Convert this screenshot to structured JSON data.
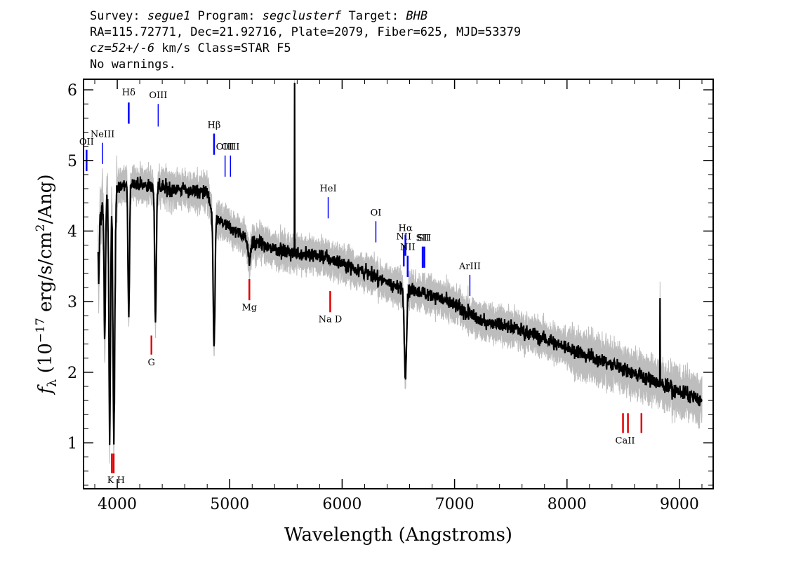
{
  "header": {
    "line1": [
      {
        "text": "Survey: ",
        "italic": false
      },
      {
        "text": "segue1",
        "italic": true
      },
      {
        "text": " Program: ",
        "italic": false
      },
      {
        "text": "segclusterf",
        "italic": true
      },
      {
        "text": " Target: ",
        "italic": false
      },
      {
        "text": "BHB",
        "italic": true
      }
    ],
    "line2": "RA=115.72771, Dec=21.92716, Plate=2079, Fiber=625, MJD=53379",
    "line3": [
      {
        "text": "cz=52+/-6",
        "italic": true
      },
      {
        "text": " km/s Class=STAR F5",
        "italic": false
      }
    ],
    "line4": "No warnings."
  },
  "chart_data": {
    "type": "line",
    "xlabel": "Wavelength (Angstroms)",
    "ylabel_parts": {
      "f": "f",
      "sub": "λ",
      "pre": " (10",
      "exp": "−17",
      "mid": " erg/s/cm",
      "exp2": "2",
      "post": "/Ang)"
    },
    "xlim": [
      3700,
      9300
    ],
    "ylim": [
      0.35,
      6.15
    ],
    "xticks": [
      4000,
      5000,
      6000,
      7000,
      8000,
      9000
    ],
    "yticks": [
      1,
      2,
      3,
      4,
      5,
      6
    ],
    "colors": {
      "flux": "#000000",
      "error": "#bdbdbd",
      "emission": "#0000ff",
      "absorption": "#e00000"
    },
    "continuum_nodes": [
      [
        3830,
        4.3
      ],
      [
        3850,
        4.25
      ],
      [
        3900,
        4.4
      ],
      [
        4000,
        4.6
      ],
      [
        4100,
        4.7
      ],
      [
        4200,
        4.65
      ],
      [
        4400,
        4.62
      ],
      [
        4600,
        4.58
      ],
      [
        4800,
        4.55
      ],
      [
        4850,
        4.2
      ],
      [
        5000,
        4.05
      ],
      [
        5200,
        3.85
      ],
      [
        5500,
        3.7
      ],
      [
        5800,
        3.65
      ],
      [
        6000,
        3.55
      ],
      [
        6300,
        3.35
      ],
      [
        6500,
        3.2
      ],
      [
        6800,
        3.1
      ],
      [
        7000,
        2.95
      ],
      [
        7200,
        2.75
      ],
      [
        7500,
        2.65
      ],
      [
        8000,
        2.35
      ],
      [
        8500,
        2.05
      ],
      [
        8800,
        1.85
      ],
      [
        9200,
        1.6
      ]
    ],
    "absorption_features": [
      {
        "center": 3835,
        "depth": 1.0,
        "width": 6
      },
      {
        "center": 3889,
        "depth": 1.9,
        "width": 6
      },
      {
        "center": 3933,
        "depth": 3.4,
        "width": 7
      },
      {
        "center": 3970,
        "depth": 3.5,
        "width": 8
      },
      {
        "center": 4102,
        "depth": 1.9,
        "width": 7
      },
      {
        "center": 4340,
        "depth": 1.9,
        "width": 7
      },
      {
        "center": 4861,
        "depth": 1.8,
        "width": 8
      },
      {
        "center": 5175,
        "depth": 0.3,
        "width": 10
      },
      {
        "center": 6563,
        "depth": 1.2,
        "width": 10
      }
    ],
    "spikes": [
      {
        "center": 5578,
        "height": 6.1
      },
      {
        "center": 8827,
        "height": 3.05
      }
    ],
    "emission_lines": [
      {
        "label": "Hδ",
        "x": 4102,
        "y_top": 5.82,
        "y_bot": 5.52,
        "label_y": 5.92,
        "thick": true
      },
      {
        "label": "OIII",
        "x": 4364,
        "y_top": 5.8,
        "y_bot": 5.48,
        "label_y": 5.88,
        "thick": false
      },
      {
        "label": "NeIII",
        "x": 3869,
        "y_top": 5.25,
        "y_bot": 4.95,
        "label_y": 5.33,
        "thick": false
      },
      {
        "label": "OII",
        "x": 3727,
        "y_top": 5.15,
        "y_bot": 4.85,
        "label_y": 5.22,
        "thick": true
      },
      {
        "label": "Hβ",
        "x": 4861,
        "y_top": 5.38,
        "y_bot": 5.08,
        "label_y": 5.46,
        "thick": true
      },
      {
        "label": "OIII",
        "x": 4959,
        "y_top": 5.07,
        "y_bot": 4.77,
        "label_y": 5.15,
        "thick": false
      },
      {
        "label": "OIII",
        "x": 5007,
        "y_top": 5.07,
        "y_bot": 4.77,
        "label_y": 5.15,
        "thick": false
      },
      {
        "label": "HeI",
        "x": 5876,
        "y_top": 4.48,
        "y_bot": 4.18,
        "label_y": 4.56,
        "thick": false
      },
      {
        "label": "OI",
        "x": 6300,
        "y_top": 4.14,
        "y_bot": 3.84,
        "label_y": 4.22,
        "thick": false
      },
      {
        "label": "NII",
        "x": 6548,
        "y_top": 3.8,
        "y_bot": 3.5,
        "label_y": 3.88,
        "thick": true
      },
      {
        "label": "Hα",
        "x": 6563,
        "y_top": 3.95,
        "y_bot": 3.65,
        "label_y": 4.0,
        "thick": true
      },
      {
        "label": "NII",
        "x": 6583,
        "y_top": 3.65,
        "y_bot": 3.35,
        "label_y": 3.73,
        "thick": true
      },
      {
        "label": "SII",
        "x": 6716,
        "y_top": 3.78,
        "y_bot": 3.48,
        "label_y": 3.86,
        "thick": true
      },
      {
        "label": "SII",
        "x": 6731,
        "y_top": 3.78,
        "y_bot": 3.48,
        "label_y": 3.86,
        "thick": true
      },
      {
        "label": "ArIII",
        "x": 7136,
        "y_top": 3.38,
        "y_bot": 3.08,
        "label_y": 3.46,
        "thick": false
      }
    ],
    "absorption_lines": [
      {
        "label": "K H",
        "x": 3952,
        "y_top": 0.85,
        "y_bot": 0.57,
        "label_y": 0.43
      },
      {
        "label": "",
        "x": 3968,
        "y_top": 0.85,
        "y_bot": 0.57,
        "label_y": 0.43
      },
      {
        "label": "G",
        "x": 4304,
        "y_top": 2.52,
        "y_bot": 2.25,
        "label_y": 2.1
      },
      {
        "label": "Mg",
        "x": 5175,
        "y_top": 3.32,
        "y_bot": 3.02,
        "label_y": 2.88
      },
      {
        "label": "Na D",
        "x": 5894,
        "y_top": 3.15,
        "y_bot": 2.85,
        "label_y": 2.71
      },
      {
        "label": "CaII",
        "x": 8498,
        "y_top": 1.42,
        "y_bot": 1.14,
        "label_y": 0.99
      },
      {
        "label": "",
        "x": 8542,
        "y_top": 1.42,
        "y_bot": 1.14,
        "label_y": 0.99
      },
      {
        "label": "",
        "x": 8662,
        "y_top": 1.42,
        "y_bot": 1.14,
        "label_y": 0.99
      }
    ]
  }
}
